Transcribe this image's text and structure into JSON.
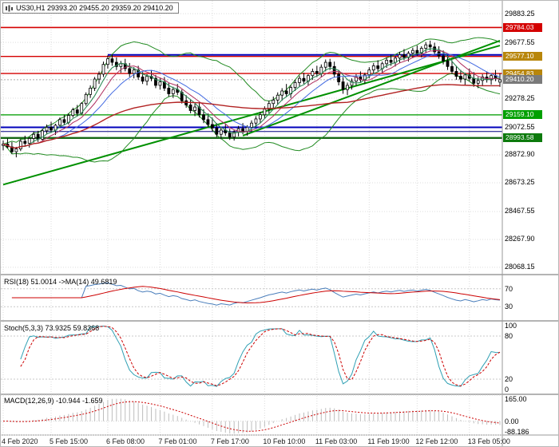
{
  "window": {
    "title": "US30,H1 29393.20 29455.20 29359.20 29410.20"
  },
  "panels": {
    "main": {
      "header": "US30,H1 29393.20 29455.20 29359.20 29410.20"
    },
    "rsi": {
      "header": "RSI(18) 51.0014  ->MA(14) 49.6819",
      "axis": [
        {
          "v": 70,
          "text": "70"
        },
        {
          "v": 30,
          "text": "30"
        }
      ],
      "levels": [
        70,
        30
      ],
      "ylim": [
        0,
        100
      ]
    },
    "stoch": {
      "header": "Stoch(5,3,3) 73.9325 59.8366",
      "axis": [
        {
          "v": 100,
          "text": "100"
        },
        {
          "v": 80,
          "text": "80"
        },
        {
          "v": 20,
          "text": "20"
        },
        {
          "v": 0,
          "text": "0"
        }
      ],
      "levels": [
        80,
        20
      ],
      "ylim": [
        0,
        100
      ]
    },
    "macd": {
      "header": "MACD(12,26,9) -10.944 -1.659",
      "axis": [
        {
          "v": 165,
          "text": "165.00"
        },
        {
          "v": 0,
          "text": "0.00"
        },
        {
          "v": -88.186,
          "text": "-88.186"
        }
      ],
      "levels": [
        165,
        0,
        -88.186
      ],
      "ylim": [
        -88.186,
        165
      ]
    }
  },
  "price_axis": {
    "grid_labels": [
      {
        "price": 29883.25,
        "text": "29883.25"
      },
      {
        "price": 29677.55,
        "text": "29677.55"
      },
      {
        "price": 29278.25,
        "text": "29278.25"
      },
      {
        "price": 29072.55,
        "text": "29072.55"
      },
      {
        "price": 28872.9,
        "text": "28872.90"
      },
      {
        "price": 28673.25,
        "text": "28673.25"
      },
      {
        "price": 28467.55,
        "text": "28467.55"
      },
      {
        "price": 28267.9,
        "text": "28267.90"
      },
      {
        "price": 28068.15,
        "text": "28068.15"
      }
    ],
    "badges": [
      {
        "price": 29784.03,
        "text": "29784.03",
        "bg": "#d40000"
      },
      {
        "price": 29577.1,
        "text": "29577.10",
        "bg": "#b8860b"
      },
      {
        "price": 29454.83,
        "text": "29454.83",
        "bg": "#b8860b"
      },
      {
        "price": 29410.2,
        "text": "29410.20",
        "bg": "#7a7a7a"
      },
      {
        "price": 29159.1,
        "text": "29159.10",
        "bg": "#00a000"
      },
      {
        "price": 28993.58,
        "text": "28993.58",
        "bg": "#0c7a0c"
      }
    ]
  },
  "time_axis": {
    "labels": [
      {
        "bar": 0,
        "text": "4 Feb 2020"
      },
      {
        "bar": 11,
        "text": "5 Feb 15:00"
      },
      {
        "bar": 24,
        "text": "6 Feb 08:00"
      },
      {
        "bar": 36,
        "text": "7 Feb 01:00"
      },
      {
        "bar": 48,
        "text": "7 Feb 17:00"
      },
      {
        "bar": 60,
        "text": "10 Feb 10:00"
      },
      {
        "bar": 72,
        "text": "11 Feb 03:00"
      },
      {
        "bar": 84,
        "text": "11 Feb 19:00"
      },
      {
        "bar": 95,
        "text": "12 Feb 12:00"
      },
      {
        "bar": 107,
        "text": "13 Feb 05:00"
      }
    ]
  },
  "colors": {
    "grid": "#dcdcdc",
    "candle_up": "#ffffff",
    "candle_down": "#000000",
    "candle_border": "#000000",
    "ma_fast": "#2e8b57",
    "ma_mid": "#b03060",
    "ma_slow": "#4169e1",
    "ma_long": "#b22222",
    "bollinger": "#228b22",
    "trend": "#009000",
    "separator": "#b4b4b4",
    "axis_line": "#9a9a9a",
    "rsi_line": "#4a7ebb",
    "rsi_signal": "#cc0000",
    "stoch_k": "#30a0b4",
    "stoch_d": "#cc0000",
    "macd_hist": "#bdbdbd",
    "macd_signal": "#cc0000",
    "current_line": "#aaaaaa"
  },
  "chart_data": {
    "type": "candlestick",
    "symbol": "US30",
    "timeframe": "H1",
    "last_ohlc": {
      "open": 29393.2,
      "high": 29455.2,
      "low": 29359.2,
      "close": 29410.2
    },
    "view_ylim": [
      28022,
      29975
    ],
    "grid_prices": [
      29883.25,
      29677.55,
      29477.9,
      29278.25,
      29072.55,
      28872.9,
      28673.25,
      28467.55,
      28267.9,
      28068.15
    ],
    "levels": [
      {
        "price": 29784.03,
        "color": "#d40000",
        "width": 1.6
      },
      {
        "price": 29577.1,
        "color": "#d40000",
        "width": 1.4
      },
      {
        "price": 29454.83,
        "color": "#d40000",
        "width": 1.4
      },
      {
        "price": 29159.1,
        "color": "#22aa22",
        "width": 1.6
      },
      {
        "price": 28993.58,
        "color": "#156815",
        "width": 2.4
      },
      {
        "price": 29070,
        "color": "#0000bb",
        "width": 2
      },
      {
        "price": 29040,
        "color": "#000080",
        "width": 1
      },
      {
        "price": 29588,
        "color": "#0000bb",
        "width": 2,
        "from_bar": 24
      }
    ],
    "current_price": 29410.2,
    "trendlines": [
      {
        "from": [
          0,
          28660
        ],
        "to": [
          114,
          29655
        ],
        "color": "#009000",
        "width": 2
      },
      {
        "from": [
          55,
          29010
        ],
        "to": [
          114,
          29690
        ],
        "color": "#009000",
        "width": 2
      }
    ],
    "indicators": {
      "rsi_period": 18,
      "rsi_ma_period": 14,
      "stoch_params": [
        5,
        3,
        3
      ],
      "macd_params": [
        12,
        26,
        9
      ],
      "last_values": {
        "rsi": 51.0014,
        "rsi_ma": 49.6819,
        "stoch_k": 73.9325,
        "stoch_d": 59.8366,
        "macd": -10.944,
        "macd_signal": -1.659
      }
    },
    "ohlc": [
      [
        28940,
        28975,
        28905,
        28950
      ],
      [
        28950,
        28990,
        28920,
        28930
      ],
      [
        28930,
        28965,
        28880,
        28895
      ],
      [
        28895,
        28930,
        28855,
        28915
      ],
      [
        28915,
        28985,
        28900,
        28970
      ],
      [
        28970,
        29010,
        28940,
        28955
      ],
      [
        28955,
        29000,
        28925,
        28990
      ],
      [
        28990,
        29040,
        28960,
        29020
      ],
      [
        29020,
        29045,
        28965,
        28985
      ],
      [
        28985,
        29060,
        28975,
        29045
      ],
      [
        29045,
        29090,
        29020,
        29070
      ],
      [
        29070,
        29110,
        29030,
        29050
      ],
      [
        29050,
        29095,
        29015,
        29085
      ],
      [
        29085,
        29140,
        29070,
        29125
      ],
      [
        29125,
        29160,
        29085,
        29105
      ],
      [
        29105,
        29170,
        29090,
        29155
      ],
      [
        29155,
        29210,
        29140,
        29195
      ],
      [
        29195,
        29230,
        29150,
        29170
      ],
      [
        29170,
        29250,
        29160,
        29240
      ],
      [
        29240,
        29320,
        29225,
        29305
      ],
      [
        29305,
        29370,
        29280,
        29350
      ],
      [
        29350,
        29430,
        29330,
        29415
      ],
      [
        29415,
        29470,
        29380,
        29450
      ],
      [
        29450,
        29540,
        29430,
        29520
      ],
      [
        29520,
        29585,
        29490,
        29560
      ],
      [
        29560,
        29590,
        29510,
        29535
      ],
      [
        29535,
        29570,
        29480,
        29505
      ],
      [
        29505,
        29545,
        29460,
        29525
      ],
      [
        29525,
        29560,
        29470,
        29490
      ],
      [
        29490,
        29530,
        29430,
        29455
      ],
      [
        29455,
        29500,
        29420,
        29480
      ],
      [
        29480,
        29510,
        29410,
        29430
      ],
      [
        29430,
        29465,
        29380,
        29400
      ],
      [
        29400,
        29450,
        29370,
        29435
      ],
      [
        29435,
        29480,
        29400,
        29420
      ],
      [
        29420,
        29445,
        29350,
        29370
      ],
      [
        29370,
        29420,
        29340,
        29395
      ],
      [
        29395,
        29430,
        29330,
        29350
      ],
      [
        29350,
        29390,
        29290,
        29310
      ],
      [
        29310,
        29360,
        29280,
        29340
      ],
      [
        29340,
        29380,
        29300,
        29320
      ],
      [
        29320,
        29340,
        29240,
        29260
      ],
      [
        29260,
        29300,
        29210,
        29230
      ],
      [
        29230,
        29270,
        29170,
        29190
      ],
      [
        29190,
        29240,
        29150,
        29215
      ],
      [
        29215,
        29250,
        29140,
        29160
      ],
      [
        29160,
        29200,
        29100,
        29125
      ],
      [
        29125,
        29170,
        29070,
        29090
      ],
      [
        29090,
        29140,
        29040,
        29065
      ],
      [
        29065,
        29100,
        29000,
        29020
      ],
      [
        29020,
        29070,
        28985,
        29050
      ],
      [
        29050,
        29090,
        29010,
        29030
      ],
      [
        29030,
        29060,
        28980,
        29000
      ],
      [
        29000,
        29050,
        28975,
        29035
      ],
      [
        29035,
        29080,
        29005,
        29060
      ],
      [
        29060,
        29100,
        29020,
        29040
      ],
      [
        29040,
        29085,
        29010,
        29070
      ],
      [
        29070,
        29120,
        29040,
        29100
      ],
      [
        29100,
        29150,
        29070,
        29130
      ],
      [
        29130,
        29180,
        29100,
        29160
      ],
      [
        29160,
        29220,
        29130,
        29200
      ],
      [
        29200,
        29260,
        29170,
        29240
      ],
      [
        29240,
        29290,
        29200,
        29265
      ],
      [
        29265,
        29320,
        29230,
        29300
      ],
      [
        29300,
        29350,
        29260,
        29330
      ],
      [
        29330,
        29380,
        29290,
        29310
      ],
      [
        29310,
        29370,
        29280,
        29355
      ],
      [
        29355,
        29410,
        29330,
        29390
      ],
      [
        29390,
        29440,
        29360,
        29420
      ],
      [
        29420,
        29460,
        29380,
        29400
      ],
      [
        29400,
        29450,
        29370,
        29440
      ],
      [
        29440,
        29490,
        29410,
        29470
      ],
      [
        29470,
        29510,
        29430,
        29455
      ],
      [
        29455,
        29520,
        29430,
        29500
      ],
      [
        29500,
        29555,
        29470,
        29535
      ],
      [
        29535,
        29560,
        29480,
        29505
      ],
      [
        29505,
        29540,
        29430,
        29450
      ],
      [
        29450,
        29480,
        29370,
        29395
      ],
      [
        29395,
        29430,
        29310,
        29340
      ],
      [
        29340,
        29390,
        29300,
        29370
      ],
      [
        29370,
        29420,
        29340,
        29400
      ],
      [
        29400,
        29450,
        29370,
        29430
      ],
      [
        29430,
        29470,
        29390,
        29410
      ],
      [
        29410,
        29460,
        29380,
        29445
      ],
      [
        29445,
        29500,
        29420,
        29480
      ],
      [
        29480,
        29530,
        29450,
        29510
      ],
      [
        29510,
        29550,
        29470,
        29490
      ],
      [
        29490,
        29540,
        29460,
        29525
      ],
      [
        29525,
        29570,
        29495,
        29550
      ],
      [
        29550,
        29590,
        29510,
        29535
      ],
      [
        29535,
        29580,
        29505,
        29565
      ],
      [
        29565,
        29610,
        29530,
        29590
      ],
      [
        29590,
        29630,
        29550,
        29570
      ],
      [
        29570,
        29615,
        29540,
        29600
      ],
      [
        29600,
        29640,
        29565,
        29620
      ],
      [
        29620,
        29655,
        29580,
        29600
      ],
      [
        29600,
        29650,
        29570,
        29635
      ],
      [
        29635,
        29680,
        29600,
        29660
      ],
      [
        29660,
        29690,
        29620,
        29645
      ],
      [
        29645,
        29675,
        29590,
        29610
      ],
      [
        29610,
        29650,
        29560,
        29580
      ],
      [
        29580,
        29620,
        29520,
        29545
      ],
      [
        29545,
        29585,
        29480,
        29505
      ],
      [
        29505,
        29550,
        29450,
        29470
      ],
      [
        29470,
        29510,
        29410,
        29435
      ],
      [
        29435,
        29480,
        29390,
        29415
      ],
      [
        29415,
        29460,
        29370,
        29445
      ],
      [
        29445,
        29490,
        29400,
        29420
      ],
      [
        29420,
        29465,
        29360,
        29385
      ],
      [
        29385,
        29430,
        29350,
        29405
      ],
      [
        29405,
        29450,
        29370,
        29430
      ],
      [
        29430,
        29470,
        29390,
        29410
      ],
      [
        29410,
        29455,
        29375,
        29440
      ],
      [
        29440,
        29480,
        29400,
        29420
      ],
      [
        29393.2,
        29455.2,
        29359.2,
        29410.2
      ]
    ]
  }
}
